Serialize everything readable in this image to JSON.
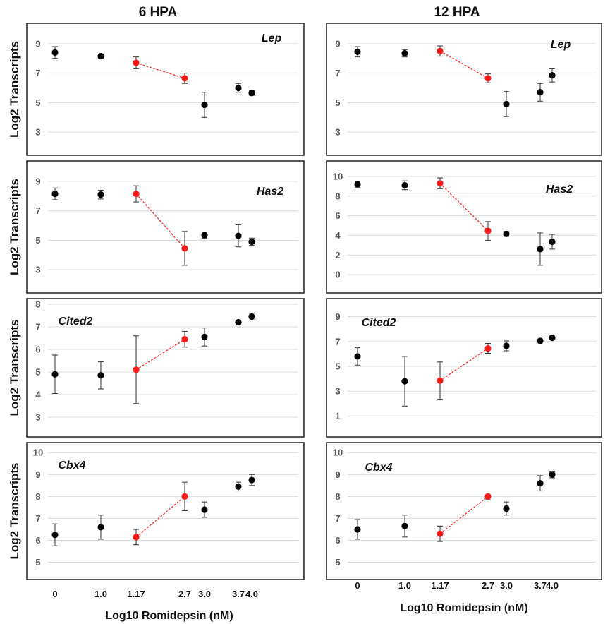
{
  "figure": {
    "column_titles": [
      "6 HPA",
      "12 HPA"
    ],
    "ylabel": "Log2 Transcripts",
    "xlabel": "Log10 Romidepsin (nM)",
    "xtick_labels": [
      "0",
      "1.0",
      "1.17",
      "2.7",
      "3.0",
      "3.7",
      "4.0"
    ],
    "colors": {
      "black_point": "#000000",
      "red_point": "#ff1a1a",
      "red_line": "#ff2a2a"
    }
  },
  "chart_data": [
    {
      "type": "scatter",
      "column": "6 HPA",
      "gene": "Lep",
      "ylim": [
        2,
        10
      ],
      "yticks": [
        3,
        5,
        7,
        9
      ],
      "x": [
        0,
        1.0,
        1.17,
        2.7,
        3.0,
        3.7,
        4.0
      ],
      "y": [
        8.4,
        8.15,
        7.7,
        6.65,
        4.85,
        6.0,
        5.65
      ],
      "err": [
        0.4,
        0.15,
        0.4,
        0.35,
        0.85,
        0.3,
        0.15
      ],
      "highlight": [
        2,
        3
      ],
      "red_line": [
        2,
        3
      ]
    },
    {
      "type": "scatter",
      "column": "12 HPA",
      "gene": "Lep",
      "ylim": [
        2,
        10
      ],
      "yticks": [
        3,
        5,
        7,
        9
      ],
      "x": [
        0,
        1.0,
        1.17,
        2.7,
        3.0,
        3.7,
        4.0
      ],
      "y": [
        8.45,
        8.35,
        8.5,
        6.65,
        4.9,
        5.7,
        6.85
      ],
      "err": [
        0.35,
        0.25,
        0.35,
        0.3,
        0.85,
        0.6,
        0.45
      ],
      "highlight": [
        2,
        3
      ],
      "red_line": [
        2,
        3
      ]
    },
    {
      "type": "scatter",
      "column": "6 HPA",
      "gene": "Has2",
      "ylim": [
        2,
        10
      ],
      "yticks": [
        3,
        5,
        7,
        9
      ],
      "x": [
        0,
        1.0,
        1.17,
        2.7,
        3.0,
        3.7,
        4.0
      ],
      "y": [
        8.15,
        8.1,
        8.15,
        4.45,
        5.35,
        5.3,
        4.9
      ],
      "err": [
        0.4,
        0.3,
        0.55,
        1.15,
        0.2,
        0.75,
        0.25
      ],
      "highlight": [
        2,
        3
      ],
      "red_line": [
        2,
        3
      ]
    },
    {
      "type": "scatter",
      "column": "12 HPA",
      "gene": "Has2",
      "ylim": [
        -1,
        11
      ],
      "yticks": [
        0,
        2,
        4,
        6,
        8,
        10
      ],
      "x": [
        0,
        1.0,
        1.17,
        2.7,
        3.0,
        3.7,
        4.0
      ],
      "y": [
        9.2,
        9.1,
        9.3,
        4.45,
        4.15,
        2.6,
        3.35
      ],
      "err": [
        0.3,
        0.45,
        0.55,
        0.95,
        0.25,
        1.65,
        0.75
      ],
      "highlight": [
        2,
        3
      ],
      "red_line": [
        2,
        3
      ]
    },
    {
      "type": "scatter",
      "column": "6 HPA",
      "gene": "Cited2",
      "ylim": [
        2.5,
        8
      ],
      "yticks": [
        3,
        4,
        5,
        6,
        7,
        8
      ],
      "x": [
        0,
        1.0,
        1.17,
        2.7,
        3.0,
        3.7,
        4.0
      ],
      "y": [
        4.9,
        4.85,
        5.1,
        6.45,
        6.55,
        7.2,
        7.45
      ],
      "err": [
        0.85,
        0.6,
        1.5,
        0.35,
        0.4,
        0.08,
        0.15
      ],
      "highlight": [
        2,
        3
      ],
      "red_line": [
        2,
        3
      ]
    },
    {
      "type": "scatter",
      "column": "12 HPA",
      "gene": "Cited2",
      "ylim": [
        0,
        10
      ],
      "yticks": [
        1,
        3,
        5,
        7,
        9
      ],
      "x": [
        0,
        1.0,
        1.17,
        2.7,
        3.0,
        3.7,
        4.0
      ],
      "y": [
        5.8,
        3.8,
        3.85,
        6.45,
        6.65,
        7.05,
        7.3
      ],
      "err": [
        0.7,
        2.0,
        1.5,
        0.4,
        0.4,
        0.1,
        0.1
      ],
      "highlight": [
        2,
        3
      ],
      "red_line": [
        2,
        3
      ]
    },
    {
      "type": "scatter",
      "column": "6 HPA",
      "gene": "Cbx4",
      "ylim": [
        4.6,
        10.2
      ],
      "yticks": [
        5,
        6,
        7,
        8,
        9,
        10
      ],
      "x": [
        0,
        1.0,
        1.17,
        2.7,
        3.0,
        3.7,
        4.0
      ],
      "y": [
        6.25,
        6.6,
        6.15,
        8.0,
        7.4,
        8.45,
        8.75
      ],
      "err": [
        0.5,
        0.55,
        0.35,
        0.65,
        0.35,
        0.2,
        0.25
      ],
      "highlight": [
        2,
        3
      ],
      "red_line": [
        2,
        3
      ]
    },
    {
      "type": "scatter",
      "column": "12 HPA",
      "gene": "Cbx4",
      "ylim": [
        4.6,
        10.2
      ],
      "yticks": [
        5,
        6,
        7,
        8,
        9,
        10
      ],
      "x": [
        0,
        1.0,
        1.17,
        2.7,
        3.0,
        3.7,
        4.0
      ],
      "y": [
        6.5,
        6.65,
        6.3,
        8.0,
        7.45,
        8.6,
        9.0
      ],
      "err": [
        0.45,
        0.5,
        0.35,
        0.15,
        0.3,
        0.35,
        0.15
      ],
      "highlight": [
        2,
        3
      ],
      "red_line": [
        2,
        3
      ]
    }
  ]
}
